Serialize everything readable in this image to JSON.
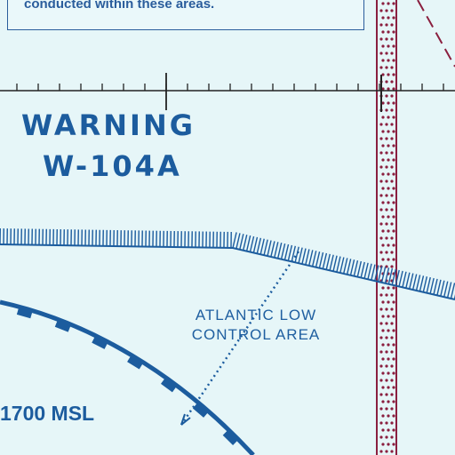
{
  "map": {
    "top_note": "conducted within these areas.",
    "warning_area": {
      "line1": "WARNING",
      "line2": "W-104A"
    },
    "control_area": {
      "line1": "ATLANTIC LOW",
      "line2": "CONTROL AREA"
    },
    "altitude_label": "1700 MSL",
    "colors": {
      "background": "#e6f6f8",
      "airspace_blue": "#1c5c9e",
      "boundary_maroon": "#8a1f3f"
    }
  }
}
